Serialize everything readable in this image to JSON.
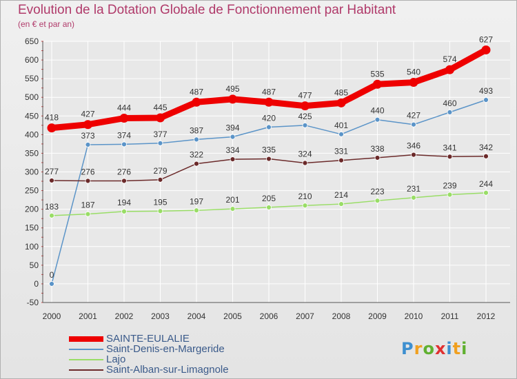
{
  "chart_data": {
    "type": "line",
    "title": "Evolution de la Dotation Globale de Fonctionnement par Habitant",
    "subtitle": "(en € et par an)",
    "xlabel": "",
    "ylabel": "",
    "categories": [
      "2000",
      "2001",
      "2002",
      "2003",
      "2004",
      "2005",
      "2006",
      "2007",
      "2008",
      "2009",
      "2010",
      "2011",
      "2012"
    ],
    "ylim": [
      -50,
      650
    ],
    "yticks": [
      -50,
      0,
      50,
      100,
      150,
      200,
      250,
      300,
      350,
      400,
      450,
      500,
      550,
      600,
      650
    ],
    "grid": true,
    "legend_position": "bottom",
    "series": [
      {
        "name": "SAINTE-EULALIE",
        "color": "#ee0000",
        "values": [
          418,
          427,
          444,
          445,
          487,
          495,
          487,
          477,
          485,
          535,
          540,
          574,
          627
        ]
      },
      {
        "name": "Saint-Denis-en-Margeride",
        "color": "#5b94c8",
        "values": [
          0,
          373,
          374,
          377,
          387,
          394,
          420,
          425,
          401,
          440,
          427,
          460,
          493
        ]
      },
      {
        "name": "Lajo",
        "color": "#99dd66",
        "values": [
          183,
          187,
          194,
          195,
          197,
          201,
          205,
          210,
          214,
          223,
          231,
          239,
          244
        ]
      },
      {
        "name": "Saint-Alban-sur-Limagnole",
        "color": "#6b2a2a",
        "values": [
          277,
          276,
          276,
          279,
          322,
          334,
          335,
          324,
          331,
          338,
          346,
          341,
          342
        ]
      }
    ]
  },
  "logo": {
    "letters": [
      "P",
      "r",
      "o",
      "x",
      "i",
      "t",
      "i"
    ],
    "colors": [
      "#3d8fd0",
      "#f0a020",
      "#60b030",
      "#e03030",
      "#3d8fd0",
      "#f0a020",
      "#60b030"
    ]
  }
}
